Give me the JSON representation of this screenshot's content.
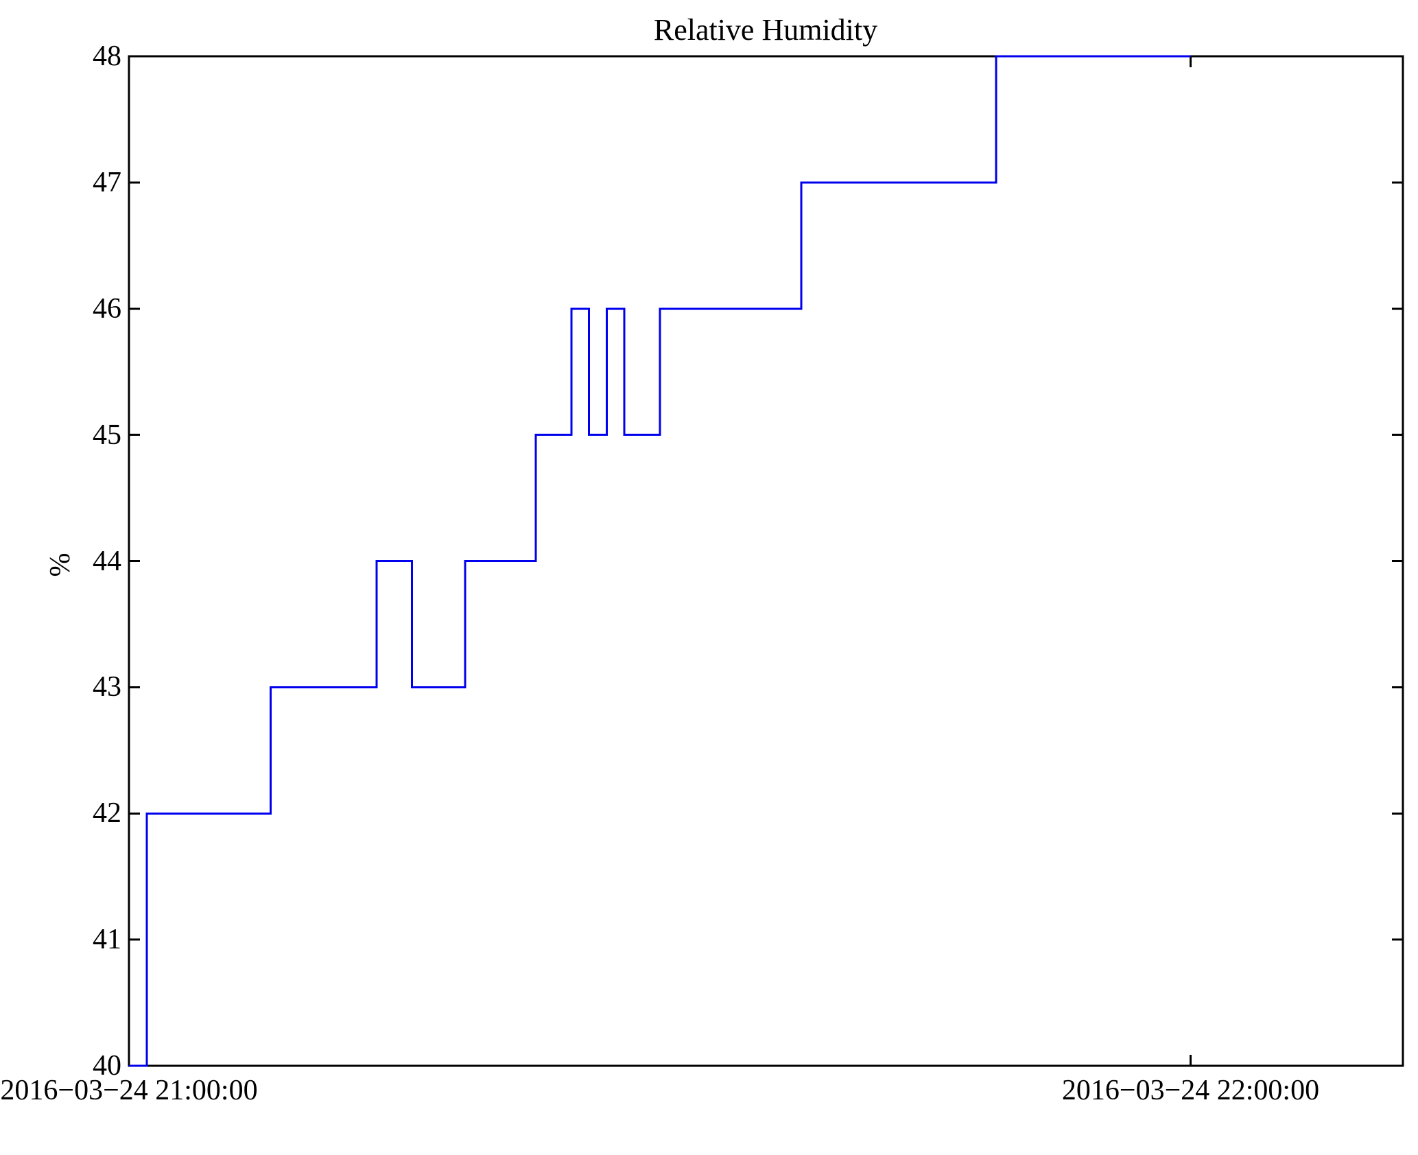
{
  "figure": {
    "title": "Relative Humidity",
    "ylabel": "%"
  },
  "chart_data": {
    "type": "line",
    "line_style": "step-post",
    "title": "Relative Humidity",
    "xlabel": "",
    "ylabel": "%",
    "grid": false,
    "legend": false,
    "colors": {
      "line": "#0000ee",
      "axis": "#000000",
      "background": "#ffffff",
      "text": "#000000"
    },
    "y_axis": {
      "range": [
        40,
        48
      ],
      "ticks": [
        40,
        41,
        42,
        43,
        44,
        45,
        46,
        47,
        48
      ]
    },
    "x_axis": {
      "unit": "minutes after 2016-03-24 21:00:00",
      "range_minutes": [
        0,
        72
      ],
      "ticks": [
        {
          "minute": 0,
          "label": "2016−03−24 21:00:00"
        },
        {
          "minute": 60,
          "label": "2016−03−24 22:00:00"
        }
      ]
    },
    "series": [
      {
        "name": "Relative Humidity",
        "color": "#0000ee",
        "points_time_value": [
          [
            "21:00",
            40
          ],
          [
            "21:01",
            42
          ],
          [
            "21:08",
            43
          ],
          [
            "21:14",
            44
          ],
          [
            "21:16",
            43
          ],
          [
            "21:19",
            44
          ],
          [
            "21:23",
            45
          ],
          [
            "21:25",
            46
          ],
          [
            "21:26",
            45
          ],
          [
            "21:27",
            46
          ],
          [
            "21:28",
            45
          ],
          [
            "21:30",
            46
          ],
          [
            "21:38",
            47
          ],
          [
            "21:49",
            48
          ],
          [
            "22:00",
            48
          ]
        ],
        "path_vertices_min_pct": [
          [
            0,
            40
          ],
          [
            1,
            40
          ],
          [
            1,
            42
          ],
          [
            8,
            42
          ],
          [
            8,
            43
          ],
          [
            14,
            43
          ],
          [
            14,
            44
          ],
          [
            16,
            44
          ],
          [
            16,
            43
          ],
          [
            19,
            43
          ],
          [
            19,
            44
          ],
          [
            23,
            44
          ],
          [
            23,
            45
          ],
          [
            25,
            45
          ],
          [
            25,
            46
          ],
          [
            26,
            46
          ],
          [
            26,
            45
          ],
          [
            27,
            45
          ],
          [
            27,
            46
          ],
          [
            28,
            46
          ],
          [
            28,
            45
          ],
          [
            30,
            45
          ],
          [
            30,
            46
          ],
          [
            38,
            46
          ],
          [
            38,
            47
          ],
          [
            49,
            47
          ],
          [
            49,
            48
          ],
          [
            60,
            48
          ]
        ]
      }
    ]
  }
}
